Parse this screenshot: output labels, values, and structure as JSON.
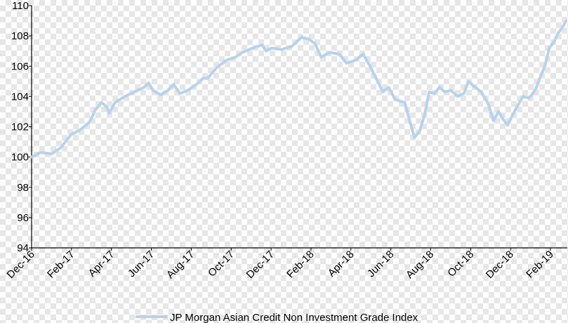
{
  "chart_data": {
    "type": "line",
    "title": "",
    "xlabel": "",
    "ylabel": "",
    "ylim": [
      94,
      110
    ],
    "y_ticks": [
      "94",
      "96",
      "98",
      "100",
      "102",
      "104",
      "106",
      "108",
      "110"
    ],
    "x_tick_labels": [
      "Dec-16",
      "Feb-17",
      "Apr-17",
      "Jun-17",
      "Aug-17",
      "Oct-17",
      "Dec-17",
      "Feb-18",
      "Apr-18",
      "Jun-18",
      "Aug-18",
      "Oct-18",
      "Dec-18",
      "Feb-19"
    ],
    "x_range": [
      "2016-12-01",
      "2019-03-15"
    ],
    "grid": false,
    "legend": {
      "position": "bottom-center",
      "entries": [
        "JP Morgan Asian Credit Non Investment Grade Index"
      ]
    },
    "series": [
      {
        "name": "JP Morgan Asian Credit Non Investment Grade Index",
        "color": "#b8d2ec",
        "points": [
          [
            "2016-12-01",
            100.0
          ],
          [
            "2016-12-15",
            100.3
          ],
          [
            "2017-01-01",
            100.2
          ],
          [
            "2017-01-15",
            100.6
          ],
          [
            "2017-02-01",
            101.5
          ],
          [
            "2017-02-15",
            101.8
          ],
          [
            "2017-03-01",
            102.3
          ],
          [
            "2017-03-10",
            103.1
          ],
          [
            "2017-03-20",
            103.6
          ],
          [
            "2017-03-28",
            103.3
          ],
          [
            "2017-04-01",
            102.9
          ],
          [
            "2017-04-10",
            103.6
          ],
          [
            "2017-04-25",
            104.0
          ],
          [
            "2017-05-10",
            104.3
          ],
          [
            "2017-05-25",
            104.6
          ],
          [
            "2017-06-01",
            104.9
          ],
          [
            "2017-06-08",
            104.4
          ],
          [
            "2017-06-20",
            104.1
          ],
          [
            "2017-07-01",
            104.4
          ],
          [
            "2017-07-10",
            104.8
          ],
          [
            "2017-07-20",
            104.2
          ],
          [
            "2017-08-01",
            104.4
          ],
          [
            "2017-08-15",
            104.8
          ],
          [
            "2017-08-25",
            105.2
          ],
          [
            "2017-09-01",
            105.2
          ],
          [
            "2017-09-15",
            105.9
          ],
          [
            "2017-10-01",
            106.4
          ],
          [
            "2017-10-15",
            106.6
          ],
          [
            "2017-10-25",
            106.9
          ],
          [
            "2017-11-10",
            107.2
          ],
          [
            "2017-11-25",
            107.4
          ],
          [
            "2017-12-01",
            107.0
          ],
          [
            "2017-12-10",
            107.2
          ],
          [
            "2017-12-25",
            107.1
          ],
          [
            "2018-01-10",
            107.3
          ],
          [
            "2018-01-25",
            107.9
          ],
          [
            "2018-02-05",
            107.8
          ],
          [
            "2018-02-15",
            107.5
          ],
          [
            "2018-02-25",
            106.6
          ],
          [
            "2018-03-10",
            106.9
          ],
          [
            "2018-03-25",
            106.8
          ],
          [
            "2018-04-05",
            106.2
          ],
          [
            "2018-04-20",
            106.4
          ],
          [
            "2018-05-01",
            106.8
          ],
          [
            "2018-05-12",
            106.0
          ],
          [
            "2018-05-20",
            105.3
          ],
          [
            "2018-06-01",
            104.3
          ],
          [
            "2018-06-10",
            104.6
          ],
          [
            "2018-06-15",
            104.2
          ],
          [
            "2018-06-20",
            103.8
          ],
          [
            "2018-07-05",
            103.6
          ],
          [
            "2018-07-12",
            102.5
          ],
          [
            "2018-07-20",
            101.3
          ],
          [
            "2018-07-28",
            101.7
          ],
          [
            "2018-08-05",
            102.8
          ],
          [
            "2018-08-12",
            104.3
          ],
          [
            "2018-08-20",
            104.2
          ],
          [
            "2018-08-28",
            104.6
          ],
          [
            "2018-09-05",
            104.3
          ],
          [
            "2018-09-15",
            104.4
          ],
          [
            "2018-09-25",
            104.0
          ],
          [
            "2018-10-05",
            104.2
          ],
          [
            "2018-10-12",
            105.0
          ],
          [
            "2018-10-20",
            104.7
          ],
          [
            "2018-11-01",
            104.3
          ],
          [
            "2018-11-12",
            103.5
          ],
          [
            "2018-11-20",
            102.4
          ],
          [
            "2018-11-28",
            103.0
          ],
          [
            "2018-12-05",
            102.5
          ],
          [
            "2018-12-12",
            102.1
          ],
          [
            "2018-12-25",
            103.2
          ],
          [
            "2019-01-05",
            104.0
          ],
          [
            "2019-01-15",
            103.9
          ],
          [
            "2019-01-25",
            104.5
          ],
          [
            "2019-02-01",
            105.3
          ],
          [
            "2019-02-08",
            106.0
          ],
          [
            "2019-02-15",
            107.2
          ],
          [
            "2019-02-22",
            107.6
          ],
          [
            "2019-03-01",
            108.2
          ],
          [
            "2019-03-08",
            108.6
          ],
          [
            "2019-03-13",
            109.0
          ]
        ]
      }
    ]
  }
}
